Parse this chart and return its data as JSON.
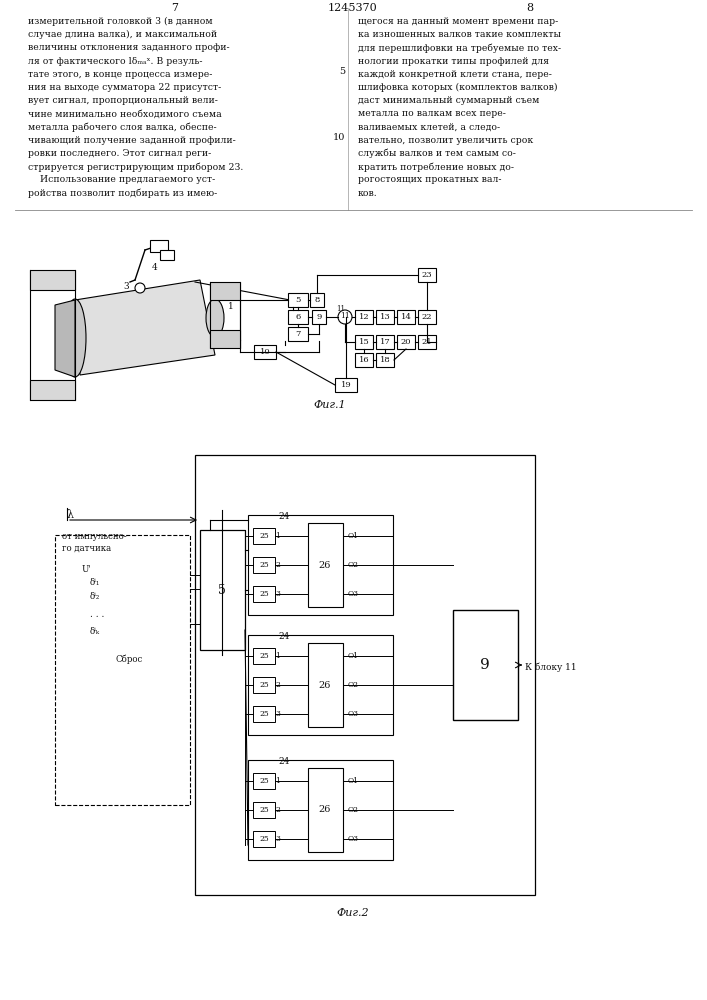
{
  "page_number_left": "7",
  "patent_number": "1245370",
  "page_number_right": "8",
  "text_left": [
    "измерительной головкой 3 (в данном",
    "случае длина валка), и максимальной",
    "величины отклонения заданного профи-",
    "ля от фактического lδₘₐˣ. В резуль-",
    "тате этого, в конце процесса измере-",
    "ния на выходе сумматора 22 присутст-",
    "вует сигнал, пропорциональный вели-",
    "чине минимально необходимого съема",
    "металла рабочего слоя валка, обеспе-",
    "чивающий получение заданной профили-",
    "ровки последнего. Этот сигнал реги-",
    "стрируется регистрирующим прибором 23.",
    "    Использование предлагаемого уст-",
    "ройства позволит подбирать из имею-"
  ],
  "text_right": [
    "щегося на данный момент времени пар-",
    "ка изношенных валков такие комплекты",
    "для перешлифовки на требуемые по тех-",
    "нологии прокатки типы профилей для",
    "каждой конкретной клети стана, пере-",
    "шлифовка которых (комплектов валков)",
    "даст минимальный суммарный съем",
    "металла по валкам всех пере-",
    "валиваемых клетей, а следо-",
    "вательно, позволит увеличить срок",
    "службы валков и тем самым со-",
    "кратить потребление новых до-",
    "рогостоящих прокатных вал-",
    "ков."
  ],
  "fig1_caption": "Фиг.1",
  "fig2_caption": "Фиг.2"
}
